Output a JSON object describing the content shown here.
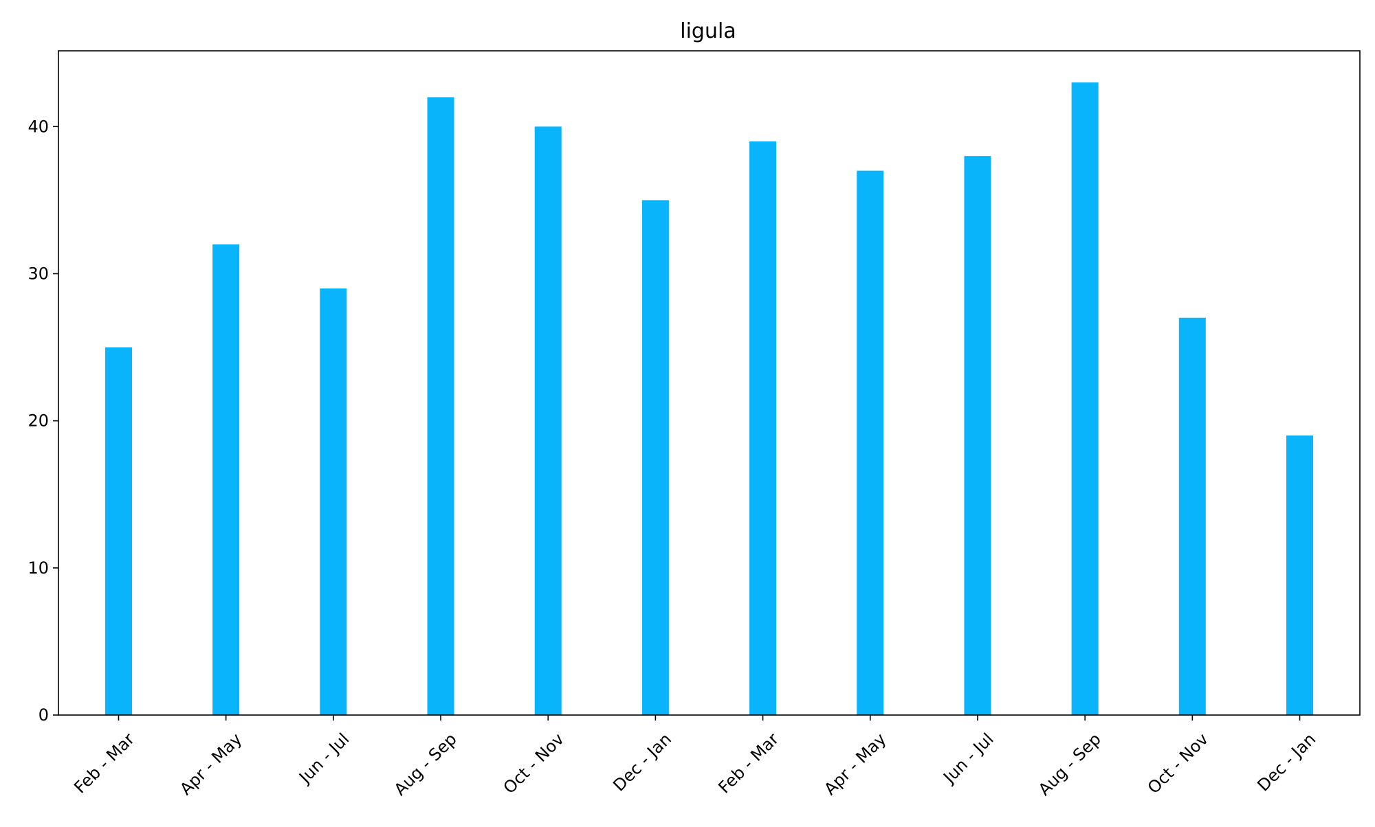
{
  "chart_data": {
    "type": "bar",
    "title": "ligula",
    "xlabel": "",
    "ylabel": "",
    "categories": [
      "Feb - Mar",
      "Apr - May",
      "Jun - Jul",
      "Aug - Sep",
      "Oct - Nov",
      "Dec - Jan",
      "Feb - Mar",
      "Apr - May",
      "Jun - Jul",
      "Aug - Sep",
      "Oct - Nov",
      "Dec - Jan"
    ],
    "values": [
      25,
      32,
      29,
      42,
      40,
      35,
      39,
      37,
      38,
      43,
      27,
      19
    ],
    "ylim": [
      0,
      45.15
    ],
    "yticks": [
      "0",
      "10",
      "20",
      "30",
      "40"
    ],
    "grid": false,
    "legend": "none",
    "colors": {
      "bar": "#0ab4fb",
      "axis": "#000000",
      "background": "#ffffff"
    }
  }
}
